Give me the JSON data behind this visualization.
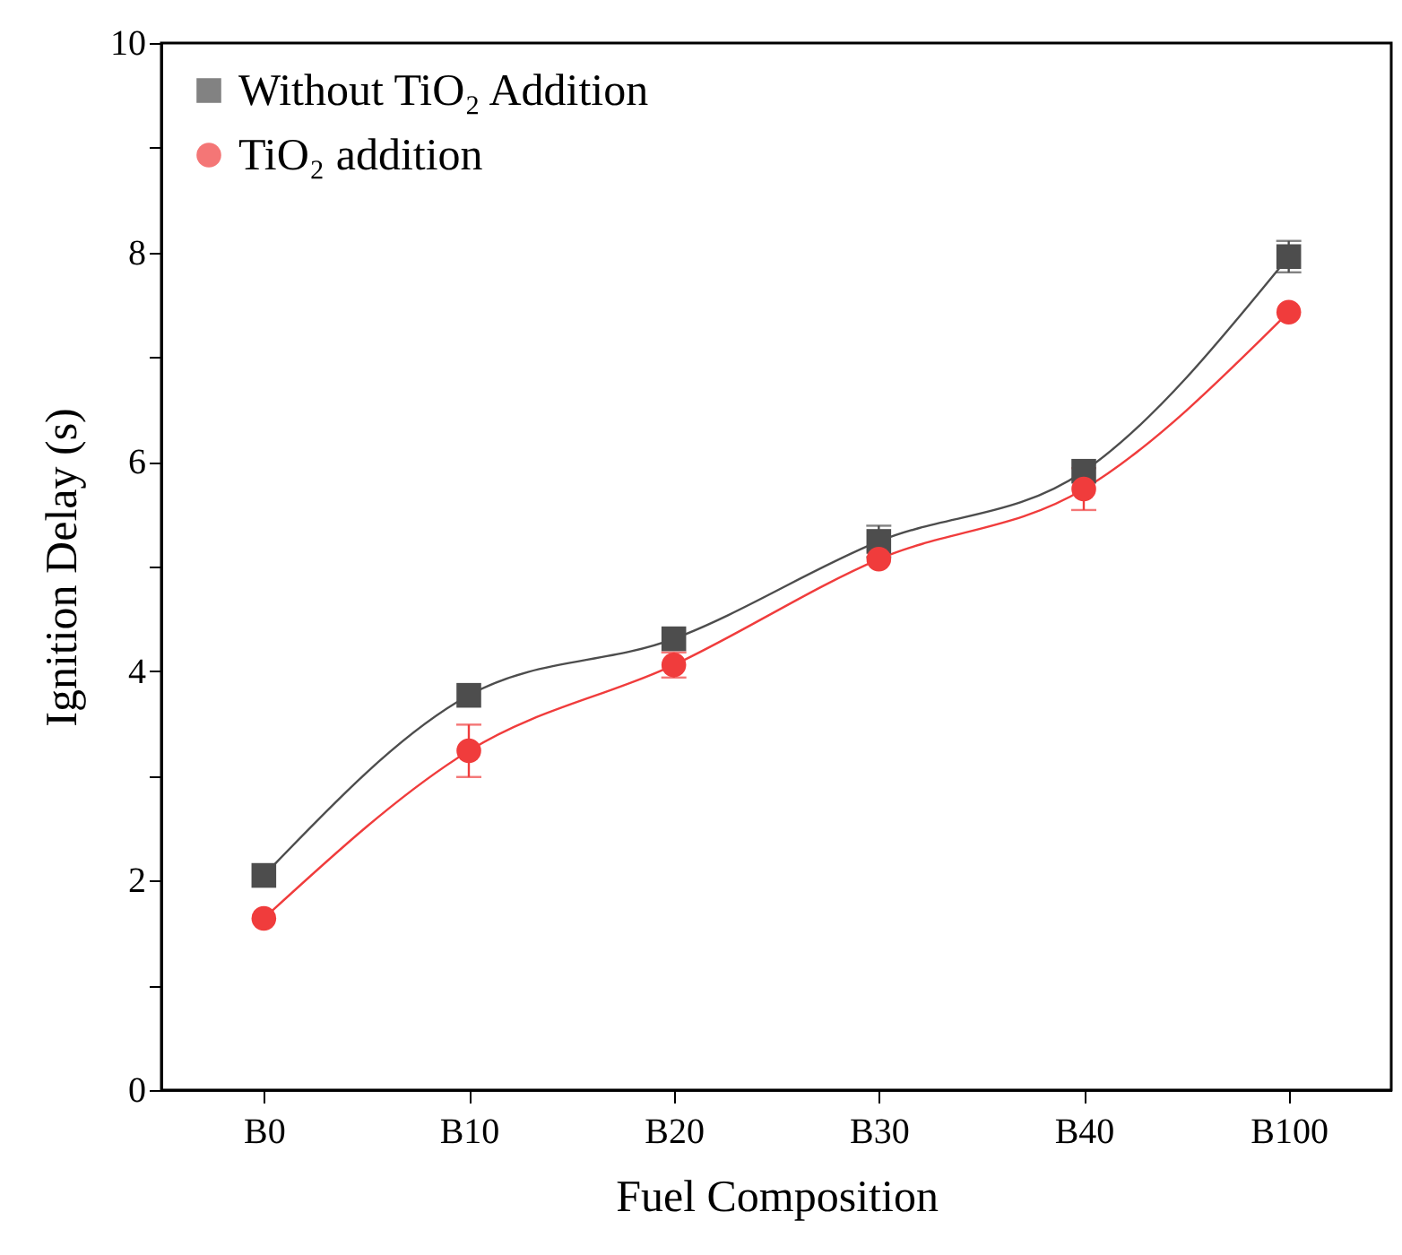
{
  "chart_data": {
    "type": "line",
    "xlabel": "Fuel Composition",
    "ylabel": "Ignition Delay (s)",
    "categories": [
      "B0",
      "B10",
      "B20",
      "B30",
      "B40",
      "B100"
    ],
    "series": [
      {
        "name": "Without TiO₂ Addition",
        "color": "#4d4d4d",
        "marker": "square",
        "values": [
          2.05,
          3.77,
          4.31,
          5.24,
          5.91,
          7.96
        ],
        "errors": [
          null,
          null,
          null,
          0.15,
          null,
          0.15
        ]
      },
      {
        "name": "TiO₂ addition",
        "color": "#f03c3c",
        "marker": "circle",
        "values": [
          1.64,
          3.24,
          4.06,
          5.07,
          5.74,
          7.43
        ],
        "errors": [
          null,
          0.25,
          0.12,
          null,
          0.2,
          null
        ]
      }
    ],
    "ylim": [
      0,
      10
    ],
    "yticks": [
      0,
      {
        "value": 1,
        "label": null
      },
      2,
      {
        "value": 3,
        "label": null
      },
      4,
      {
        "value": 5,
        "label": null
      },
      6,
      {
        "value": 7,
        "label": null
      },
      8,
      {
        "value": 9,
        "label": null
      },
      10
    ],
    "grid": false,
    "legend": "top left",
    "line_style": "solid"
  }
}
